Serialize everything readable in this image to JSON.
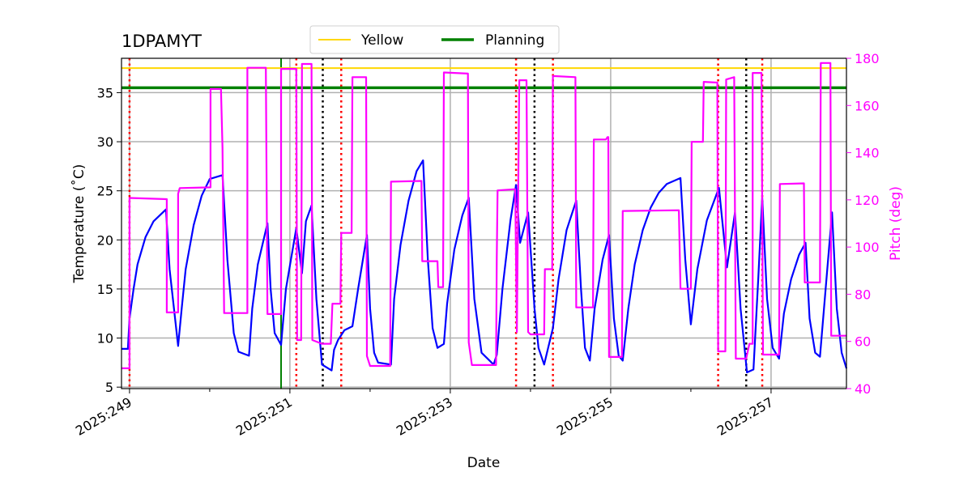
{
  "chart_data": {
    "type": "line",
    "title": "1DPAMYT",
    "xlabel": "Date",
    "ylabel": "Temperature ($^\\circ$C)",
    "ylabel_display": "Temperature (˚C)",
    "y2label": "Pitch (deg)",
    "xlim": [
      248.9,
      257.94
    ],
    "ylim": [
      4.85,
      38.5
    ],
    "y2lim": [
      40,
      180
    ],
    "grid": true,
    "legend_placement": "top-center",
    "x_ticks": [
      {
        "value": 249,
        "label": "2025:249"
      },
      {
        "value": 251,
        "label": "2025:251"
      },
      {
        "value": 253,
        "label": "2025:253"
      },
      {
        "value": 255,
        "label": "2025:255"
      },
      {
        "value": 257,
        "label": "2025:257"
      }
    ],
    "x_minor_ticks": [
      250,
      252,
      254,
      256
    ],
    "y_ticks": [
      5,
      10,
      15,
      20,
      25,
      30,
      35
    ],
    "y2_ticks": [
      40,
      60,
      80,
      100,
      120,
      140,
      160,
      180
    ],
    "colors": {
      "temperature": "#0000ff",
      "pitch": "#ff00ff",
      "yellow": "#ffd700",
      "planning": "#008000",
      "red_vline": "#ff0000",
      "black_vline": "#000000",
      "grid": "#b0b0b0"
    },
    "hlines": [
      {
        "name": "Yellow",
        "value": 37.5,
        "color": "#ffd700"
      },
      {
        "name": "Planning",
        "value": 35.5,
        "color": "#008000"
      }
    ],
    "vlines": {
      "green": [
        250.89
      ],
      "red_dotted": [
        249.0,
        251.08,
        251.64,
        253.82,
        254.28,
        256.34,
        256.89
      ],
      "black_dotted": [
        251.41,
        254.05,
        256.69
      ]
    },
    "series": [
      {
        "axis": "left",
        "color": "#0000ff",
        "points": [
          [
            248.9,
            8.9
          ],
          [
            248.98,
            8.9
          ],
          [
            249.0,
            12
          ],
          [
            249.05,
            15
          ],
          [
            249.1,
            17.5
          ],
          [
            249.2,
            20.3
          ],
          [
            249.3,
            21.9
          ],
          [
            249.455,
            23.1
          ],
          [
            249.5,
            17
          ],
          [
            249.606,
            9.2
          ],
          [
            249.65,
            13
          ],
          [
            249.7,
            17
          ],
          [
            249.8,
            21.5
          ],
          [
            249.9,
            24.5
          ],
          [
            250.0,
            26.2
          ],
          [
            250.16,
            26.6
          ],
          [
            250.22,
            18
          ],
          [
            250.3,
            10.5
          ],
          [
            250.36,
            8.6
          ],
          [
            250.49,
            8.2
          ],
          [
            250.53,
            13
          ],
          [
            250.6,
            17.5
          ],
          [
            250.72,
            21.7
          ],
          [
            250.76,
            15
          ],
          [
            250.81,
            10.5
          ],
          [
            250.89,
            9.3
          ],
          [
            250.95,
            15
          ],
          [
            251.08,
            21.2
          ],
          [
            251.15,
            16.6
          ],
          [
            251.2,
            21.9
          ],
          [
            251.27,
            23.5
          ],
          [
            251.33,
            14
          ],
          [
            251.4,
            7.3
          ],
          [
            251.52,
            6.7
          ],
          [
            251.55,
            8.8
          ],
          [
            251.6,
            9.8
          ],
          [
            251.68,
            10.8
          ],
          [
            251.78,
            11.2
          ],
          [
            251.85,
            15
          ],
          [
            251.96,
            20.5
          ],
          [
            252.0,
            13
          ],
          [
            252.05,
            8.5
          ],
          [
            252.1,
            7.5
          ],
          [
            252.26,
            7.3
          ],
          [
            252.3,
            14
          ],
          [
            252.38,
            19.5
          ],
          [
            252.48,
            24
          ],
          [
            252.58,
            27
          ],
          [
            252.66,
            28.1
          ],
          [
            252.72,
            18
          ],
          [
            252.78,
            11
          ],
          [
            252.84,
            9
          ],
          [
            252.92,
            9.4
          ],
          [
            252.96,
            13.5
          ],
          [
            253.05,
            19
          ],
          [
            253.15,
            22.5
          ],
          [
            253.23,
            24.3
          ],
          [
            253.3,
            14
          ],
          [
            253.39,
            8.5
          ],
          [
            253.54,
            7.3
          ],
          [
            253.58,
            8.3
          ],
          [
            253.65,
            15
          ],
          [
            253.75,
            22
          ],
          [
            253.82,
            25.6
          ],
          [
            253.87,
            19.7
          ],
          [
            253.97,
            22.8
          ],
          [
            254.05,
            13
          ],
          [
            254.1,
            9
          ],
          [
            254.17,
            7.3
          ],
          [
            254.22,
            9
          ],
          [
            254.28,
            11
          ],
          [
            254.35,
            16
          ],
          [
            254.45,
            21
          ],
          [
            254.57,
            24
          ],
          [
            254.63,
            15
          ],
          [
            254.68,
            9
          ],
          [
            254.74,
            7.7
          ],
          [
            254.8,
            13
          ],
          [
            254.9,
            18
          ],
          [
            254.98,
            20.5
          ],
          [
            255.04,
            12
          ],
          [
            255.1,
            8.2
          ],
          [
            255.15,
            7.7
          ],
          [
            255.22,
            13
          ],
          [
            255.3,
            17.5
          ],
          [
            255.4,
            21
          ],
          [
            255.5,
            23.3
          ],
          [
            255.6,
            24.8
          ],
          [
            255.7,
            25.7
          ],
          [
            255.87,
            26.3
          ],
          [
            255.93,
            18
          ],
          [
            256.0,
            11.4
          ],
          [
            256.08,
            17
          ],
          [
            256.2,
            22
          ],
          [
            256.35,
            25.3
          ],
          [
            256.45,
            17.2
          ],
          [
            256.55,
            22.8
          ],
          [
            256.62,
            13
          ],
          [
            256.7,
            6.5
          ],
          [
            256.78,
            6.8
          ],
          [
            256.84,
            16
          ],
          [
            256.89,
            24.3
          ],
          [
            256.95,
            14
          ],
          [
            257.02,
            9
          ],
          [
            257.1,
            7.9
          ],
          [
            257.16,
            12.5
          ],
          [
            257.25,
            16
          ],
          [
            257.35,
            18.5
          ],
          [
            257.43,
            19.7
          ],
          [
            257.48,
            12
          ],
          [
            257.55,
            8.5
          ],
          [
            257.61,
            8.1
          ],
          [
            257.68,
            15
          ],
          [
            257.76,
            22.8
          ],
          [
            257.82,
            13
          ],
          [
            257.88,
            8.5
          ],
          [
            257.94,
            6.9
          ]
        ]
      },
      {
        "axis": "right",
        "color": "#ff00ff",
        "points": [
          [
            248.9,
            48.6
          ],
          [
            249.0,
            48.6
          ],
          [
            249.0,
            120.8
          ],
          [
            249.465,
            120.3
          ],
          [
            249.465,
            72.3
          ],
          [
            249.606,
            72.3
          ],
          [
            249.606,
            122.6
          ],
          [
            249.626,
            125
          ],
          [
            250.01,
            125.3
          ],
          [
            250.01,
            167
          ],
          [
            250.14,
            167
          ],
          [
            250.16,
            142
          ],
          [
            250.18,
            72
          ],
          [
            250.47,
            72
          ],
          [
            250.47,
            176
          ],
          [
            250.7,
            176
          ],
          [
            250.72,
            71.6
          ],
          [
            250.89,
            71.6
          ],
          [
            250.89,
            175.5
          ],
          [
            251.08,
            175.5
          ],
          [
            251.09,
            60.6
          ],
          [
            251.14,
            60.6
          ],
          [
            251.15,
            177.6
          ],
          [
            251.27,
            177.6
          ],
          [
            251.28,
            60.6
          ],
          [
            251.4,
            59
          ],
          [
            251.51,
            59
          ],
          [
            251.53,
            76
          ],
          [
            251.63,
            76
          ],
          [
            251.64,
            106
          ],
          [
            251.77,
            106
          ],
          [
            251.78,
            172
          ],
          [
            251.95,
            172
          ],
          [
            251.96,
            53.8
          ],
          [
            252.0,
            49.6
          ],
          [
            252.25,
            49.6
          ],
          [
            252.26,
            127.7
          ],
          [
            252.64,
            128
          ],
          [
            252.65,
            94
          ],
          [
            252.84,
            94
          ],
          [
            252.85,
            83
          ],
          [
            252.91,
            83
          ],
          [
            252.92,
            174
          ],
          [
            253.22,
            173.5
          ],
          [
            253.23,
            59.6
          ],
          [
            253.27,
            50
          ],
          [
            253.57,
            50
          ],
          [
            253.58,
            95.7
          ],
          [
            253.59,
            124
          ],
          [
            253.81,
            124.5
          ],
          [
            253.83,
            64
          ],
          [
            253.86,
            170.7
          ],
          [
            253.95,
            170.7
          ],
          [
            253.97,
            64
          ],
          [
            254.0,
            63
          ],
          [
            254.17,
            63
          ],
          [
            254.18,
            90.6
          ],
          [
            254.27,
            90.6
          ],
          [
            254.28,
            172.5
          ],
          [
            254.56,
            172
          ],
          [
            254.57,
            74.4
          ],
          [
            254.78,
            74.4
          ],
          [
            254.79,
            145.6
          ],
          [
            254.94,
            145.6
          ],
          [
            254.96,
            146.6
          ],
          [
            254.97,
            146.6
          ],
          [
            254.98,
            53.4
          ],
          [
            255.14,
            53.4
          ],
          [
            255.15,
            115.3
          ],
          [
            255.85,
            115.6
          ],
          [
            255.87,
            82.3
          ],
          [
            256.0,
            82.3
          ],
          [
            256.01,
            144.6
          ],
          [
            256.15,
            144.6
          ],
          [
            256.16,
            170
          ],
          [
            256.33,
            169.7
          ],
          [
            256.34,
            55.8
          ],
          [
            256.43,
            55.8
          ],
          [
            256.44,
            171
          ],
          [
            256.54,
            172
          ],
          [
            256.56,
            52.7
          ],
          [
            256.69,
            52.7
          ],
          [
            256.73,
            59
          ],
          [
            256.77,
            59
          ],
          [
            256.77,
            173.8
          ],
          [
            256.88,
            173.8
          ],
          [
            256.9,
            54.4
          ],
          [
            257.1,
            54.4
          ],
          [
            257.11,
            126.7
          ],
          [
            257.41,
            127
          ],
          [
            257.42,
            85
          ],
          [
            257.61,
            85
          ],
          [
            257.62,
            178
          ],
          [
            257.74,
            178
          ],
          [
            257.75,
            62.4
          ],
          [
            257.94,
            62.4
          ]
        ]
      }
    ]
  }
}
